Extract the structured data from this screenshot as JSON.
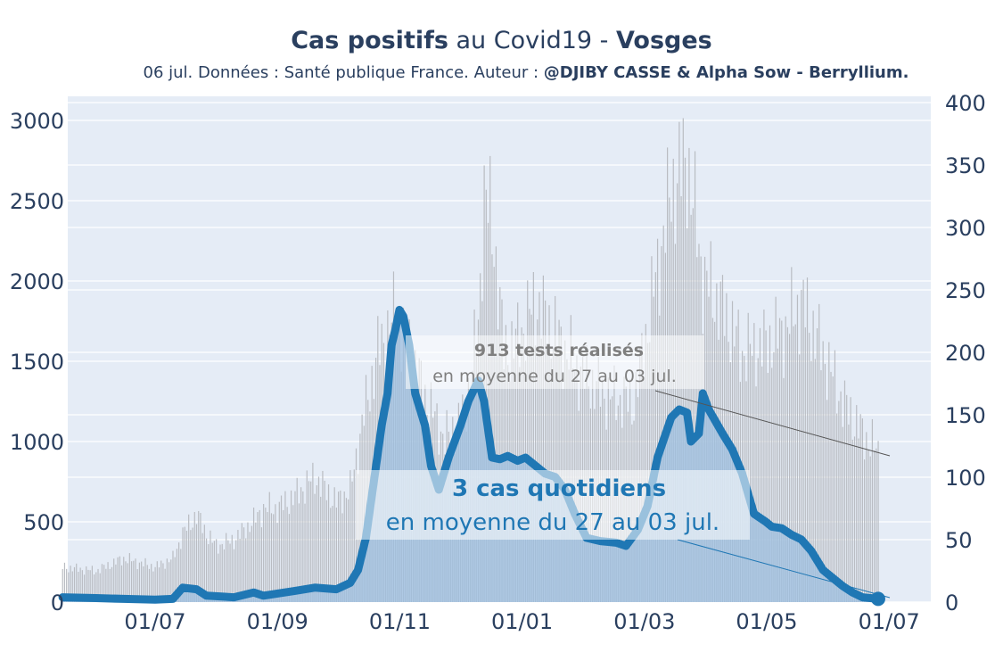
{
  "header": {
    "title_bold1": "Cas positifs",
    "title_mid": " au Covid19 - ",
    "title_bold2": "Vosges",
    "subtitle_plain": "06 jul. Données : Santé publique France. Auteur : ",
    "subtitle_bold": "@DJIBY CASSE & Alpha Sow - Berryllium."
  },
  "chart_data": {
    "type": "line",
    "x_ticks": [
      "01/07",
      "01/09",
      "01/11",
      "01/01",
      "01/03",
      "01/05",
      "01/07"
    ],
    "y_left": {
      "ticks": [
        "0",
        "500",
        "1000",
        "1500",
        "2000",
        "2500",
        "3000"
      ],
      "range": [
        0,
        3150
      ]
    },
    "y_right": {
      "ticks": [
        "0",
        "50",
        "100",
        "150",
        "200",
        "250",
        "300",
        "350",
        "400"
      ],
      "range": [
        0,
        405
      ]
    },
    "grid": true,
    "legend": "none",
    "series": [
      {
        "axis": "left",
        "style": "thick blue line with light blue fill",
        "points": [
          [
            "2020-05-15",
            30
          ],
          [
            "2020-06-01",
            25
          ],
          [
            "2020-06-15",
            20
          ],
          [
            "2020-07-01",
            15
          ],
          [
            "2020-07-10",
            20
          ],
          [
            "2020-07-15",
            90
          ],
          [
            "2020-07-22",
            80
          ],
          [
            "2020-07-27",
            40
          ],
          [
            "2020-08-10",
            30
          ],
          [
            "2020-08-20",
            60
          ],
          [
            "2020-08-25",
            40
          ],
          [
            "2020-09-10",
            70
          ],
          [
            "2020-09-20",
            90
          ],
          [
            "2020-10-01",
            80
          ],
          [
            "2020-10-08",
            120
          ],
          [
            "2020-10-12",
            200
          ],
          [
            "2020-10-16",
            400
          ],
          [
            "2020-10-20",
            750
          ],
          [
            "2020-10-24",
            1100
          ],
          [
            "2020-10-27",
            1300
          ],
          [
            "2020-10-29",
            1600
          ],
          [
            "2020-10-31",
            1700
          ],
          [
            "2020-11-02",
            1820
          ],
          [
            "2020-11-04",
            1780
          ],
          [
            "2020-11-07",
            1600
          ],
          [
            "2020-11-10",
            1300
          ],
          [
            "2020-11-15",
            1100
          ],
          [
            "2020-11-18",
            850
          ],
          [
            "2020-11-22",
            700
          ],
          [
            "2020-11-27",
            900
          ],
          [
            "2020-12-03",
            1100
          ],
          [
            "2020-12-07",
            1250
          ],
          [
            "2020-12-12",
            1380
          ],
          [
            "2020-12-15",
            1250
          ],
          [
            "2020-12-19",
            900
          ],
          [
            "2020-12-23",
            890
          ],
          [
            "2020-12-27",
            910
          ],
          [
            "2021-01-01",
            880
          ],
          [
            "2021-01-05",
            900
          ],
          [
            "2021-01-10",
            850
          ],
          [
            "2021-01-15",
            800
          ],
          [
            "2021-01-20",
            780
          ],
          [
            "2021-01-25",
            700
          ],
          [
            "2021-01-30",
            550
          ],
          [
            "2021-02-05",
            400
          ],
          [
            "2021-02-12",
            380
          ],
          [
            "2021-02-20",
            370
          ],
          [
            "2021-02-25",
            350
          ],
          [
            "2021-03-03",
            450
          ],
          [
            "2021-03-08",
            600
          ],
          [
            "2021-03-13",
            900
          ],
          [
            "2021-03-20",
            1150
          ],
          [
            "2021-03-24",
            1200
          ],
          [
            "2021-03-28",
            1180
          ],
          [
            "2021-03-30",
            1000
          ],
          [
            "2021-04-03",
            1050
          ],
          [
            "2021-04-05",
            1300
          ],
          [
            "2021-04-08",
            1200
          ],
          [
            "2021-04-15",
            1050
          ],
          [
            "2021-04-20",
            950
          ],
          [
            "2021-04-25",
            800
          ],
          [
            "2021-05-01",
            550
          ],
          [
            "2021-05-07",
            500
          ],
          [
            "2021-05-10",
            470
          ],
          [
            "2021-05-15",
            460
          ],
          [
            "2021-05-20",
            420
          ],
          [
            "2021-05-25",
            390
          ],
          [
            "2021-05-30",
            320
          ],
          [
            "2021-06-05",
            200
          ],
          [
            "2021-06-10",
            150
          ],
          [
            "2021-06-15",
            100
          ],
          [
            "2021-06-20",
            60
          ],
          [
            "2021-06-25",
            30
          ],
          [
            "2021-07-03",
            20
          ]
        ]
      },
      {
        "axis": "right",
        "style": "thin gray bars",
        "points": [
          [
            "2020-05-15",
            28
          ],
          [
            "2020-06-01",
            25
          ],
          [
            "2020-06-15",
            35
          ],
          [
            "2020-07-01",
            28
          ],
          [
            "2020-07-10",
            35
          ],
          [
            "2020-07-15",
            55
          ],
          [
            "2020-07-22",
            70
          ],
          [
            "2020-07-27",
            55
          ],
          [
            "2020-08-01",
            45
          ],
          [
            "2020-08-10",
            50
          ],
          [
            "2020-08-20",
            65
          ],
          [
            "2020-08-25",
            75
          ],
          [
            "2020-09-01",
            75
          ],
          [
            "2020-09-10",
            85
          ],
          [
            "2020-09-20",
            100
          ],
          [
            "2020-10-01",
            80
          ],
          [
            "2020-10-08",
            90
          ],
          [
            "2020-10-15",
            150
          ],
          [
            "2020-10-22",
            200
          ],
          [
            "2020-10-31",
            230
          ],
          [
            "2020-11-05",
            210
          ],
          [
            "2020-11-15",
            165
          ],
          [
            "2020-11-25",
            130
          ],
          [
            "2020-12-05",
            150
          ],
          [
            "2020-12-12",
            220
          ],
          [
            "2020-12-15",
            330
          ],
          [
            "2020-12-20",
            290
          ],
          [
            "2020-12-25",
            200
          ],
          [
            "2021-01-01",
            210
          ],
          [
            "2021-01-10",
            240
          ],
          [
            "2021-01-20",
            215
          ],
          [
            "2021-02-01",
            185
          ],
          [
            "2021-02-15",
            165
          ],
          [
            "2021-03-01",
            160
          ],
          [
            "2021-03-10",
            240
          ],
          [
            "2021-03-20",
            330
          ],
          [
            "2021-03-28",
            355
          ],
          [
            "2021-04-05",
            260
          ],
          [
            "2021-04-15",
            235
          ],
          [
            "2021-04-25",
            200
          ],
          [
            "2021-05-05",
            205
          ],
          [
            "2021-05-15",
            215
          ],
          [
            "2021-05-25",
            240
          ],
          [
            "2021-06-05",
            200
          ],
          [
            "2021-06-15",
            160
          ],
          [
            "2021-06-25",
            135
          ],
          [
            "2021-07-03",
            120
          ]
        ]
      }
    ],
    "annotations": [
      {
        "bold": "913 tests réalisés",
        "text": "en moyenne du 27 au 03 jul."
      },
      {
        "bold": "3 cas quotidiens",
        "text": "en moyenne du 27 au 03 jul."
      }
    ],
    "colors": {
      "cases": "#1f77b4",
      "fill": "#9dbfdf",
      "tests": "#b9bcc2",
      "plot_bg": "#e5ecf6"
    }
  }
}
